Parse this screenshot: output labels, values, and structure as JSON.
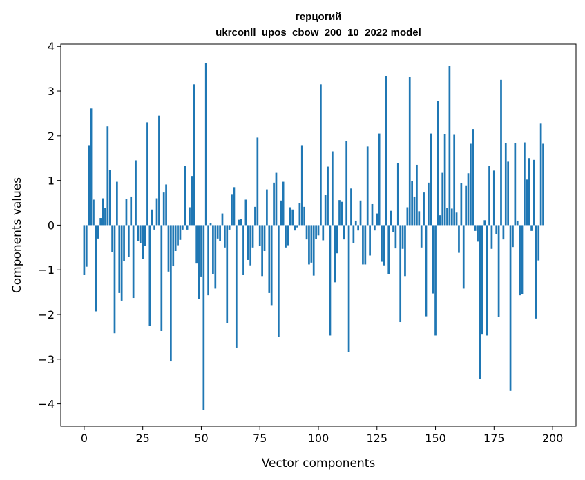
{
  "chart_data": {
    "type": "bar",
    "title": "герцогий",
    "subtitle": "ukrconll_upos_cbow_200_10_2022 model",
    "xlabel": "Vector components",
    "ylabel": "Components values",
    "xlim": [
      -10,
      210
    ],
    "ylim": [
      -4.5,
      4.05
    ],
    "xticks": [
      0,
      25,
      50,
      75,
      100,
      125,
      150,
      175,
      200
    ],
    "yticks": [
      -4,
      -3,
      -2,
      -1,
      0,
      1,
      2,
      3,
      4
    ],
    "xtick_labels": [
      "0",
      "25",
      "50",
      "75",
      "100",
      "125",
      "150",
      "175",
      "200"
    ],
    "ytick_labels": [
      "−4",
      "−3",
      "−2",
      "−1",
      "0",
      "1",
      "2",
      "3",
      "4"
    ],
    "grid": false,
    "color": "#1f77b4",
    "x_start": 0,
    "values": [
      -1.12,
      -0.93,
      1.79,
      2.61,
      0.57,
      -1.93,
      -0.3,
      0.16,
      0.6,
      0.39,
      2.21,
      1.23,
      -0.6,
      -2.42,
      0.97,
      -1.52,
      -1.69,
      -0.8,
      0.58,
      -0.71,
      0.64,
      -1.63,
      1.45,
      -0.35,
      -0.4,
      -0.76,
      -0.47,
      2.3,
      -2.26,
      0.35,
      -0.1,
      0.6,
      2.45,
      -2.37,
      0.73,
      0.91,
      -1.04,
      -3.05,
      -0.92,
      -0.58,
      -0.45,
      -0.33,
      -0.1,
      1.33,
      -0.1,
      0.4,
      1.1,
      3.15,
      -0.86,
      -1.65,
      -1.15,
      -4.13,
      3.63,
      -1.57,
      0.05,
      -1.1,
      -1.42,
      -0.3,
      -0.36,
      0.26,
      -0.5,
      -2.19,
      -0.1,
      0.68,
      0.85,
      -2.74,
      0.12,
      0.14,
      -1.12,
      0.57,
      -0.78,
      -0.9,
      -0.5,
      0.41,
      1.96,
      -0.46,
      -1.14,
      -0.58,
      0.8,
      -1.52,
      -1.79,
      0.95,
      1.17,
      -2.5,
      0.55,
      0.97,
      -0.5,
      -0.45,
      0.4,
      0.35,
      -0.12,
      -0.05,
      0.5,
      1.79,
      0.41,
      -0.32,
      -0.88,
      -0.84,
      -1.13,
      -0.31,
      -0.23,
      3.15,
      -0.34,
      0.67,
      1.31,
      -2.47,
      1.65,
      -1.28,
      -0.63,
      0.56,
      0.52,
      -0.32,
      1.88,
      -2.84,
      0.82,
      -0.4,
      0.1,
      -0.12,
      0.55,
      -0.88,
      -0.88,
      1.76,
      -0.68,
      0.47,
      -0.12,
      0.26,
      2.05,
      -0.82,
      -0.9,
      3.34,
      -1.09,
      0.32,
      -0.15,
      -0.52,
      1.39,
      -2.17,
      -0.53,
      -1.14,
      0.4,
      3.31,
      0.99,
      0.64,
      1.35,
      0.31,
      -0.5,
      0.73,
      -2.04,
      0.95,
      2.05,
      -1.53,
      -2.47,
      2.77,
      0.22,
      1.17,
      2.04,
      0.38,
      3.57,
      0.37,
      2.02,
      0.28,
      -0.62,
      0.94,
      -1.42,
      0.89,
      1.16,
      1.82,
      2.15,
      -0.13,
      -0.37,
      -3.44,
      -2.45,
      0.11,
      -2.47,
      1.33,
      -0.53,
      1.22,
      -0.2,
      -2.06,
      3.25,
      -0.32,
      1.84,
      1.42,
      -3.71,
      -0.49,
      1.84,
      0.1,
      -1.57,
      -1.55,
      1.85,
      1.02,
      1.5,
      -0.13,
      1.46,
      -2.09,
      -0.79,
      2.27,
      1.82
    ]
  }
}
